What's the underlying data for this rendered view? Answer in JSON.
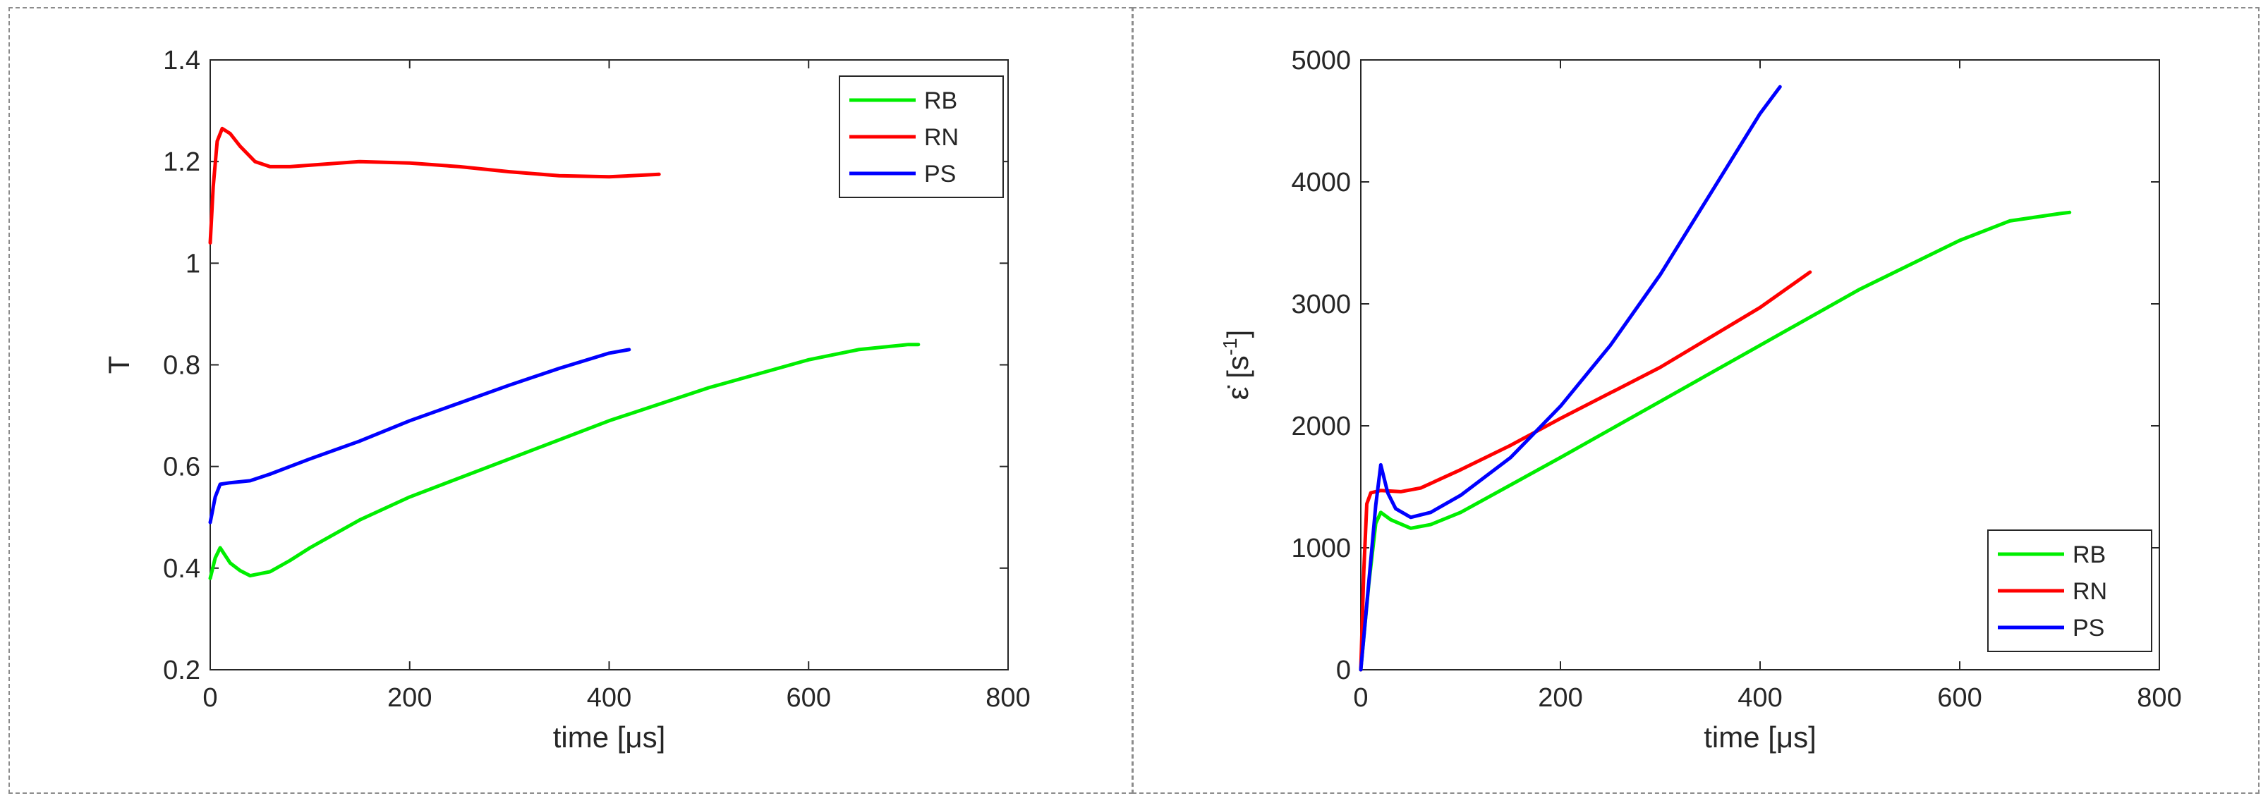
{
  "chart_data": [
    {
      "type": "line",
      "title": "",
      "xlabel": "time [μs]",
      "ylabel": "T",
      "xlim": [
        0,
        800
      ],
      "ylim": [
        0.2,
        1.4
      ],
      "xticks": [
        "0",
        "200",
        "400",
        "600",
        "800"
      ],
      "yticks": [
        "0.2",
        "0.4",
        "0.6",
        "0.8",
        "1",
        "1.2",
        "1.4"
      ],
      "legend_position": "top-right",
      "grid": false,
      "series": [
        {
          "name": "RB",
          "color": "#00ee00",
          "points": [
            [
              0,
              0.38
            ],
            [
              5,
              0.42
            ],
            [
              10,
              0.44
            ],
            [
              20,
              0.41
            ],
            [
              30,
              0.395
            ],
            [
              40,
              0.385
            ],
            [
              60,
              0.393
            ],
            [
              80,
              0.415
            ],
            [
              100,
              0.44
            ],
            [
              150,
              0.495
            ],
            [
              200,
              0.54
            ],
            [
              300,
              0.615
            ],
            [
              400,
              0.69
            ],
            [
              500,
              0.755
            ],
            [
              600,
              0.81
            ],
            [
              650,
              0.83
            ],
            [
              700,
              0.84
            ],
            [
              710,
              0.84
            ]
          ]
        },
        {
          "name": "RN",
          "color": "#ff0000",
          "points": [
            [
              0,
              1.04
            ],
            [
              3,
              1.15
            ],
            [
              7,
              1.24
            ],
            [
              12,
              1.265
            ],
            [
              20,
              1.255
            ],
            [
              30,
              1.23
            ],
            [
              45,
              1.2
            ],
            [
              60,
              1.19
            ],
            [
              80,
              1.19
            ],
            [
              150,
              1.2
            ],
            [
              200,
              1.197
            ],
            [
              250,
              1.19
            ],
            [
              300,
              1.18
            ],
            [
              350,
              1.172
            ],
            [
              400,
              1.17
            ],
            [
              450,
              1.175
            ]
          ]
        },
        {
          "name": "PS",
          "color": "#0000ff",
          "points": [
            [
              0,
              0.49
            ],
            [
              5,
              0.54
            ],
            [
              10,
              0.565
            ],
            [
              20,
              0.568
            ],
            [
              40,
              0.572
            ],
            [
              60,
              0.585
            ],
            [
              80,
              0.6
            ],
            [
              100,
              0.615
            ],
            [
              150,
              0.65
            ],
            [
              200,
              0.69
            ],
            [
              250,
              0.725
            ],
            [
              300,
              0.76
            ],
            [
              350,
              0.793
            ],
            [
              400,
              0.823
            ],
            [
              420,
              0.83
            ]
          ]
        }
      ]
    },
    {
      "type": "line",
      "title": "",
      "xlabel": "time [μs]",
      "ylabel": "ε̇ [s-1]",
      "ylabel_main": "ε̇ [s",
      "ylabel_sup": "-1",
      "ylabel_end": "]",
      "xlim": [
        0,
        800
      ],
      "ylim": [
        0,
        5000
      ],
      "xticks": [
        "0",
        "200",
        "400",
        "600",
        "800"
      ],
      "yticks": [
        "0",
        "1000",
        "2000",
        "3000",
        "4000",
        "5000"
      ],
      "legend_position": "bottom-right",
      "grid": false,
      "series": [
        {
          "name": "RB",
          "color": "#00ee00",
          "points": [
            [
              0,
              0
            ],
            [
              8,
              700
            ],
            [
              15,
              1200
            ],
            [
              20,
              1290
            ],
            [
              30,
              1230
            ],
            [
              50,
              1160
            ],
            [
              70,
              1190
            ],
            [
              100,
              1290
            ],
            [
              200,
              1740
            ],
            [
              300,
              2200
            ],
            [
              400,
              2660
            ],
            [
              500,
              3120
            ],
            [
              600,
              3520
            ],
            [
              650,
              3680
            ],
            [
              700,
              3740
            ],
            [
              710,
              3750
            ]
          ]
        },
        {
          "name": "RN",
          "color": "#ff0000",
          "points": [
            [
              0,
              0
            ],
            [
              3,
              800
            ],
            [
              6,
              1360
            ],
            [
              10,
              1450
            ],
            [
              20,
              1470
            ],
            [
              40,
              1460
            ],
            [
              60,
              1490
            ],
            [
              100,
              1640
            ],
            [
              150,
              1840
            ],
            [
              200,
              2060
            ],
            [
              300,
              2480
            ],
            [
              400,
              2970
            ],
            [
              450,
              3260
            ]
          ]
        },
        {
          "name": "PS",
          "color": "#0000ff",
          "points": [
            [
              0,
              0
            ],
            [
              10,
              900
            ],
            [
              15,
              1350
            ],
            [
              20,
              1680
            ],
            [
              27,
              1450
            ],
            [
              35,
              1320
            ],
            [
              50,
              1250
            ],
            [
              70,
              1290
            ],
            [
              100,
              1430
            ],
            [
              150,
              1740
            ],
            [
              200,
              2160
            ],
            [
              250,
              2660
            ],
            [
              300,
              3240
            ],
            [
              350,
              3900
            ],
            [
              400,
              4560
            ],
            [
              420,
              4780
            ]
          ]
        }
      ]
    }
  ]
}
